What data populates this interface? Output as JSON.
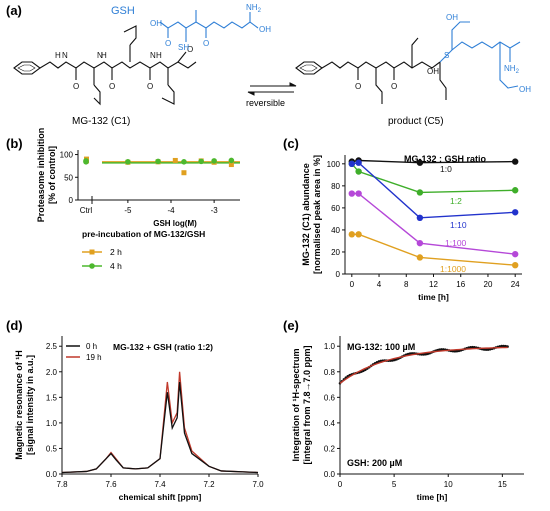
{
  "panel_labels": {
    "a": "(a)",
    "b": "(b)",
    "c": "(c)",
    "d": "(d)",
    "e": "(e)"
  },
  "scheme": {
    "gsh_label": "GSH",
    "reactant_label": "MG-132 (C1)",
    "product_label": "product (C5)",
    "arrow_label": "reversible",
    "atoms": {
      "H": "H",
      "N": "N",
      "O": "O",
      "OH": "OH",
      "SH": "SH",
      "S": "S",
      "NH2": "NH",
      "NH2_sub": "2"
    },
    "colors": {
      "gsh": "#2f7fd6",
      "mg132": "#111111"
    }
  },
  "chart_data": [
    {
      "id": "b",
      "type": "scatter",
      "xlabel": "GSH log(M)",
      "ylabel": [
        "Proteasome inhibition",
        "[% of control]"
      ],
      "ctrl_label": "Ctrl",
      "xticks": [
        "-5",
        "-4",
        "-3"
      ],
      "yticks": [
        "0",
        "50",
        "100"
      ],
      "ylim": [
        0,
        110
      ],
      "xlim": [
        -5.6,
        -2.4
      ],
      "legend_title": "pre-incubation of MG-132/GSH",
      "series": [
        {
          "name": "2 h",
          "color": "#e0a020",
          "marker": "square",
          "ctrl": [
            86,
            90
          ],
          "points": [
            [
              -5.0,
              83
            ],
            [
              -4.3,
              84
            ],
            [
              -3.9,
              87
            ],
            [
              -3.7,
              60
            ],
            [
              -3.3,
              86
            ],
            [
              -3.0,
              83
            ],
            [
              -2.6,
              78
            ]
          ]
        },
        {
          "name": "4 h",
          "color": "#4db82e",
          "marker": "circle",
          "ctrl": [
            84,
            86
          ],
          "points": [
            [
              -5.0,
              84
            ],
            [
              -4.3,
              85
            ],
            [
              -3.7,
              84
            ],
            [
              -3.3,
              85
            ],
            [
              -3.0,
              86
            ],
            [
              -2.6,
              87
            ]
          ]
        }
      ],
      "fit_lines": [
        {
          "color": "#e0a020",
          "y": 84
        },
        {
          "color": "#4db82e",
          "y": 84
        }
      ]
    },
    {
      "id": "c",
      "type": "line",
      "title": "MG-132 : GSH ratio",
      "xlabel": "time [h]",
      "ylabel": [
        "MG-132 (C1) abundance",
        "[normalised peak area in %]"
      ],
      "xticks": [
        "0",
        "4",
        "8",
        "12",
        "16",
        "20",
        "24"
      ],
      "yticks": [
        "0",
        "20",
        "40",
        "60",
        "80",
        "100"
      ],
      "xlim": [
        -1,
        25
      ],
      "ylim": [
        0,
        108
      ],
      "x": [
        0,
        1,
        10,
        24
      ],
      "series": [
        {
          "name": "1:0",
          "color": "#111111",
          "values": [
            102,
            103,
            101,
            102
          ]
        },
        {
          "name": "1:2",
          "color": "#3fae2a",
          "values": [
            100,
            93,
            74,
            76
          ]
        },
        {
          "name": "1:10",
          "color": "#2233cc",
          "values": [
            100,
            101,
            51,
            56
          ]
        },
        {
          "name": "1:100",
          "color": "#b548d8",
          "values": [
            73,
            73,
            28,
            18
          ]
        },
        {
          "name": "1:1000",
          "color": "#e0a020",
          "values": [
            36,
            36,
            15,
            8
          ]
        }
      ]
    },
    {
      "id": "d",
      "type": "line",
      "title": "MG-132 + GSH (ratio 1:2)",
      "xlabel": "chemical shift [ppm]",
      "ylabel": [
        "Magnetic resonance of ¹H",
        "[signal intensity in a.u.]"
      ],
      "xticks": [
        "7.8",
        "7.6",
        "7.4",
        "7.2",
        "7.0"
      ],
      "yticks": [
        "0.0",
        "0.5",
        "1.0",
        "1.5",
        "2.0",
        "2.5"
      ],
      "xlim": [
        7.8,
        7.0
      ],
      "ylim": [
        0,
        2.7
      ],
      "series": [
        {
          "name": "0 h",
          "color": "#111111",
          "points": [
            [
              7.8,
              0.03
            ],
            [
              7.7,
              0.05
            ],
            [
              7.66,
              0.1
            ],
            [
              7.62,
              0.3
            ],
            [
              7.6,
              0.4
            ],
            [
              7.58,
              0.28
            ],
            [
              7.55,
              0.12
            ],
            [
              7.5,
              0.1
            ],
            [
              7.45,
              0.12
            ],
            [
              7.4,
              0.3
            ],
            [
              7.37,
              1.6
            ],
            [
              7.35,
              0.9
            ],
            [
              7.33,
              1.1
            ],
            [
              7.32,
              1.8
            ],
            [
              7.3,
              0.8
            ],
            [
              7.27,
              0.4
            ],
            [
              7.2,
              0.15
            ],
            [
              7.15,
              0.06
            ],
            [
              7.0,
              0.03
            ]
          ]
        },
        {
          "name": "19 h",
          "color": "#c0392b",
          "points": [
            [
              7.8,
              0.03
            ],
            [
              7.7,
              0.05
            ],
            [
              7.66,
              0.1
            ],
            [
              7.62,
              0.3
            ],
            [
              7.6,
              0.42
            ],
            [
              7.58,
              0.3
            ],
            [
              7.55,
              0.12
            ],
            [
              7.5,
              0.1
            ],
            [
              7.45,
              0.12
            ],
            [
              7.4,
              0.3
            ],
            [
              7.37,
              1.8
            ],
            [
              7.35,
              1.0
            ],
            [
              7.33,
              1.2
            ],
            [
              7.32,
              2.0
            ],
            [
              7.3,
              0.9
            ],
            [
              7.27,
              0.45
            ],
            [
              7.2,
              0.15
            ],
            [
              7.15,
              0.06
            ],
            [
              7.0,
              0.03
            ]
          ]
        }
      ]
    },
    {
      "id": "e",
      "type": "scatter",
      "xlabel": "time [h]",
      "ylabel": [
        "Integration of ¹H-spectrum",
        "[integral from 7.8→7.0 ppm]"
      ],
      "annot_top": "MG-132: 100 µM",
      "annot_bottom": "GSH: 200 µM",
      "xticks": [
        "0",
        "5",
        "10",
        "15"
      ],
      "yticks": [
        "0.0",
        "0.2",
        "0.4",
        "0.6",
        "0.8",
        "1.0"
      ],
      "xlim": [
        0,
        17
      ],
      "ylim": [
        0,
        1.08
      ],
      "fit": {
        "y0": 0.71,
        "ymax": 1.0,
        "k": 0.22
      },
      "point_range": [
        0,
        15.5
      ]
    }
  ]
}
